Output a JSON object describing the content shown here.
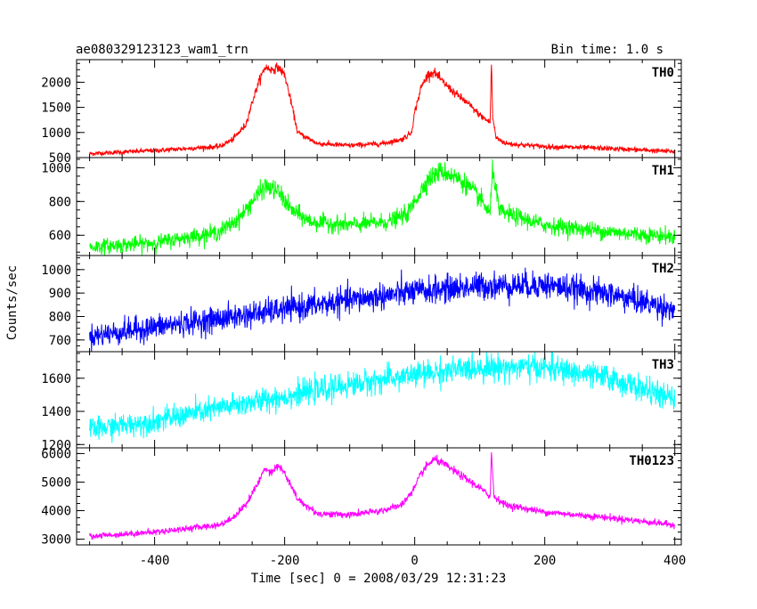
{
  "chart_data": {
    "type": "line",
    "title": "ae080329123123_wam1_trn",
    "subtitle": "Bin time: 1.0 s",
    "xlabel": "Time [sec] 0 = 2008/03/29 12:31:23",
    "ylabel": "Counts/sec",
    "xlim": [
      -520,
      410
    ],
    "xticks": [
      -400,
      -200,
      0,
      200,
      400
    ],
    "grid": false,
    "panels": [
      {
        "name": "TH0",
        "color": "#ff0000",
        "ylim": [
          500,
          2450
        ],
        "yticks": [
          500,
          1000,
          1500,
          2000
        ],
        "x": [
          -500,
          -400,
          -300,
          -280,
          -260,
          -250,
          -240,
          -230,
          -220,
          -210,
          -200,
          -190,
          -180,
          -150,
          -100,
          -50,
          -20,
          -5,
          0,
          10,
          20,
          30,
          40,
          60,
          80,
          100,
          110,
          116,
          118,
          120,
          125,
          140,
          200,
          300,
          400
        ],
        "y": [
          580,
          640,
          720,
          860,
          1150,
          1600,
          2000,
          2300,
          2250,
          2300,
          2150,
          1600,
          1000,
          780,
          740,
          780,
          860,
          1000,
          1400,
          1900,
          2150,
          2200,
          2050,
          1800,
          1600,
          1350,
          1250,
          1200,
          2400,
          1300,
          900,
          780,
          720,
          680,
          620
        ]
      },
      {
        "name": "TH1",
        "color": "#00ff00",
        "ylim": [
          480,
          1060
        ],
        "yticks": [
          600,
          800,
          1000
        ],
        "x": [
          -500,
          -400,
          -300,
          -270,
          -250,
          -230,
          -210,
          -190,
          -160,
          -100,
          -40,
          -10,
          0,
          20,
          40,
          60,
          80,
          100,
          110,
          116,
          120,
          130,
          200,
          300,
          400
        ],
        "y": [
          530,
          555,
          620,
          700,
          800,
          890,
          860,
          750,
          680,
          660,
          680,
          730,
          800,
          930,
          980,
          950,
          900,
          820,
          760,
          730,
          1000,
          740,
          660,
          620,
          590
        ]
      },
      {
        "name": "TH2",
        "color": "#0000ff",
        "ylim": [
          650,
          1060
        ],
        "yticks": [
          700,
          800,
          900,
          1000
        ],
        "x": [
          -500,
          -400,
          -300,
          -200,
          -100,
          0,
          100,
          200,
          300,
          400
        ],
        "y": [
          715,
          755,
          790,
          830,
          870,
          905,
          930,
          935,
          895,
          830
        ]
      },
      {
        "name": "TH3",
        "color": "#00ffff",
        "ylim": [
          1180,
          1760
        ],
        "yticks": [
          1200,
          1400,
          1600
        ],
        "x": [
          -500,
          -400,
          -300,
          -200,
          -100,
          0,
          100,
          200,
          300,
          400
        ],
        "y": [
          1290,
          1340,
          1420,
          1490,
          1560,
          1620,
          1665,
          1665,
          1600,
          1470
        ]
      },
      {
        "name": "TH0123",
        "color": "#ff00ff",
        "ylim": [
          2800,
          6200
        ],
        "yticks": [
          3000,
          4000,
          5000,
          6000
        ],
        "x": [
          -500,
          -400,
          -300,
          -280,
          -260,
          -240,
          -230,
          -220,
          -210,
          -200,
          -180,
          -150,
          -100,
          -50,
          -20,
          0,
          10,
          20,
          30,
          40,
          60,
          80,
          100,
          110,
          116,
          118,
          122,
          140,
          200,
          300,
          400
        ],
        "y": [
          3100,
          3250,
          3500,
          3750,
          4200,
          5000,
          5500,
          5350,
          5600,
          5300,
          4400,
          3900,
          3850,
          4000,
          4200,
          4800,
          5300,
          5600,
          5800,
          5700,
          5400,
          5100,
          4800,
          4600,
          4500,
          6000,
          4500,
          4200,
          3950,
          3750,
          3500
        ]
      }
    ]
  }
}
